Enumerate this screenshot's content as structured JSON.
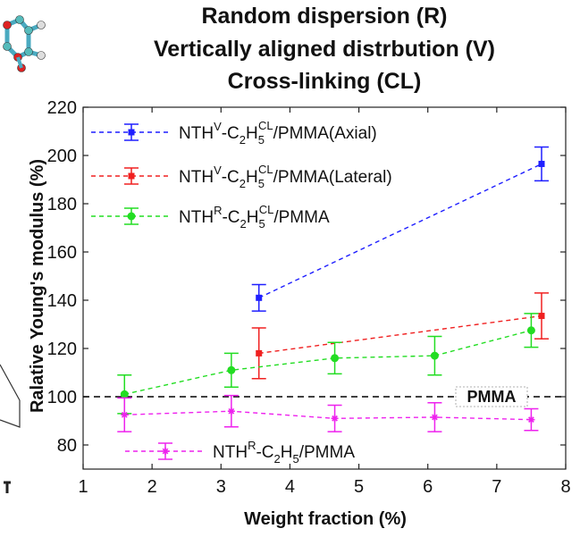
{
  "title_lines": [
    "Random dispersion (R)",
    "Vertically aligned distrbution (V)",
    "Cross-linking (CL)"
  ],
  "chart_data": {
    "type": "line",
    "xlabel": "Weight fraction (%)",
    "ylabel": "Ralative Young's modulus (%)",
    "xlim": [
      1,
      8
    ],
    "ylim": [
      70,
      220
    ],
    "xticks": [
      1,
      2,
      3,
      4,
      5,
      6,
      7,
      8
    ],
    "yticks": [
      80,
      100,
      120,
      140,
      160,
      180,
      200,
      220
    ],
    "grid": false,
    "legend_position": "top-left",
    "reference_line": {
      "label": "PMMA",
      "y": 100,
      "color": "#000000",
      "style": "dashed"
    },
    "series": [
      {
        "name": "NTH^V-C2H5^CL/PMMA(Axial)",
        "legend": {
          "base": "NTH",
          "sup1": "V",
          "mid": "-C",
          "sub1": "2",
          "mid2": "H",
          "sub2": "5",
          "sup2": "CL",
          "tail": "/PMMA(Axial)"
        },
        "color": "#1f1fff",
        "marker": "square",
        "x": [
          3.55,
          7.65
        ],
        "y": [
          141,
          196.5
        ],
        "err": [
          5.5,
          7
        ]
      },
      {
        "name": "NTH^V-C2H5^CL/PMMA(Lateral)",
        "legend": {
          "base": "NTH",
          "sup1": "V",
          "mid": "-C",
          "sub1": "2",
          "mid2": "H",
          "sub2": "5",
          "sup2": "CL",
          "tail": "/PMMA(Lateral)"
        },
        "color": "#f02020",
        "marker": "square",
        "x": [
          3.55,
          7.65
        ],
        "y": [
          118,
          133.5
        ],
        "err": [
          10.5,
          9.5
        ]
      },
      {
        "name": "NTH^R-C2H5^CL/PMMA",
        "legend": {
          "base": "NTH",
          "sup1": "R",
          "mid": "-C",
          "sub1": "2",
          "mid2": "H",
          "sub2": "5",
          "sup2": "CL",
          "tail": "/PMMA"
        },
        "color": "#22dd22",
        "marker": "circle",
        "x": [
          1.6,
          3.15,
          4.65,
          6.1,
          7.5
        ],
        "y": [
          101,
          111,
          116,
          117,
          127.5
        ],
        "err": [
          8,
          7,
          6.5,
          8,
          7
        ]
      },
      {
        "name": "NTH^R-C2H5/PMMA",
        "legend": {
          "base": "NTH",
          "sup1": "R",
          "mid": "-C",
          "sub1": "2",
          "mid2": "H",
          "sub2": "5",
          "sup2": "",
          "tail": "/PMMA"
        },
        "color": "#ee22ee",
        "marker": "star",
        "x": [
          1.6,
          3.15,
          4.65,
          6.1,
          7.5
        ],
        "y": [
          92.5,
          94,
          91,
          91.5,
          90.5
        ],
        "err": [
          7,
          6.5,
          5.5,
          6,
          4.5
        ]
      }
    ]
  }
}
